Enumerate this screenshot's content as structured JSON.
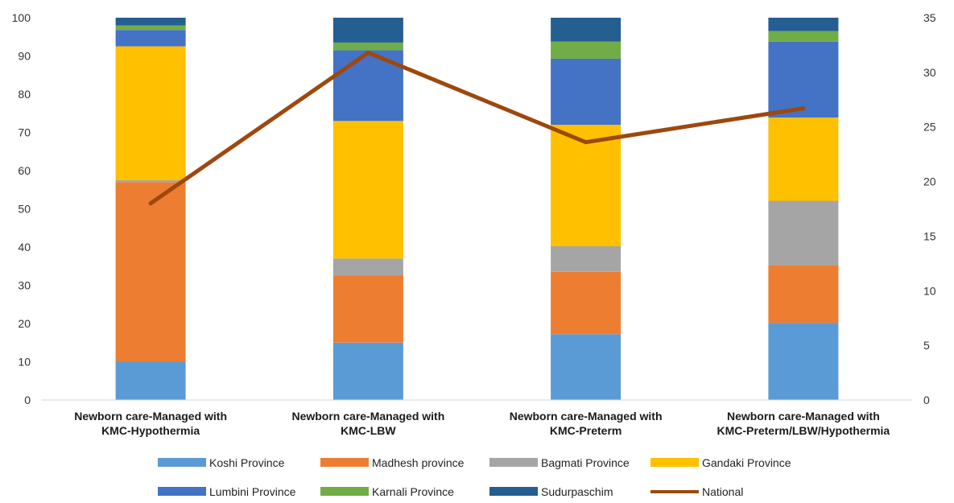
{
  "chart_data": {
    "type": "bar",
    "stacked": true,
    "categories": [
      [
        "Newborn care-Managed with",
        "KMC-Hypothermia"
      ],
      [
        "Newborn care-Managed with",
        "KMC-LBW"
      ],
      [
        "Newborn care-Managed with",
        "KMC-Preterm"
      ],
      [
        "Newborn care-Managed with",
        "KMC-Preterm/LBW/Hypothermia"
      ]
    ],
    "series": [
      {
        "name": "Koshi Province",
        "color": "#5B9BD5",
        "values": [
          10.0,
          15.0,
          17.2,
          20.2
        ]
      },
      {
        "name": "Madhesh province",
        "color": "#ED7D31",
        "values": [
          47.0,
          17.6,
          16.3,
          15.1
        ]
      },
      {
        "name": "Bagmati Province",
        "color": "#A5A5A5",
        "values": [
          0.5,
          4.4,
          6.7,
          16.8
        ]
      },
      {
        "name": "Gandaki Province",
        "color": "#FFC000",
        "values": [
          35.0,
          36.0,
          31.8,
          21.8
        ]
      },
      {
        "name": "Lumbini Province",
        "color": "#4472C4",
        "values": [
          4.3,
          18.5,
          17.3,
          19.8
        ]
      },
      {
        "name": "Karnali Province",
        "color": "#70AD47",
        "values": [
          1.2,
          2.0,
          4.5,
          2.8
        ]
      },
      {
        "name": "Sudurpaschim",
        "color": "#255E91",
        "values": [
          2.0,
          6.5,
          6.2,
          3.5
        ]
      }
    ],
    "line_series": {
      "name": "National",
      "color": "#9E480E",
      "axis": "right",
      "values": [
        18.0,
        31.8,
        23.6,
        26.7
      ]
    },
    "y_left": {
      "min": 0,
      "max": 100,
      "step": 10
    },
    "y_right": {
      "min": 0,
      "max": 35,
      "step": 5
    },
    "grid": false,
    "legend_position": "bottom"
  }
}
